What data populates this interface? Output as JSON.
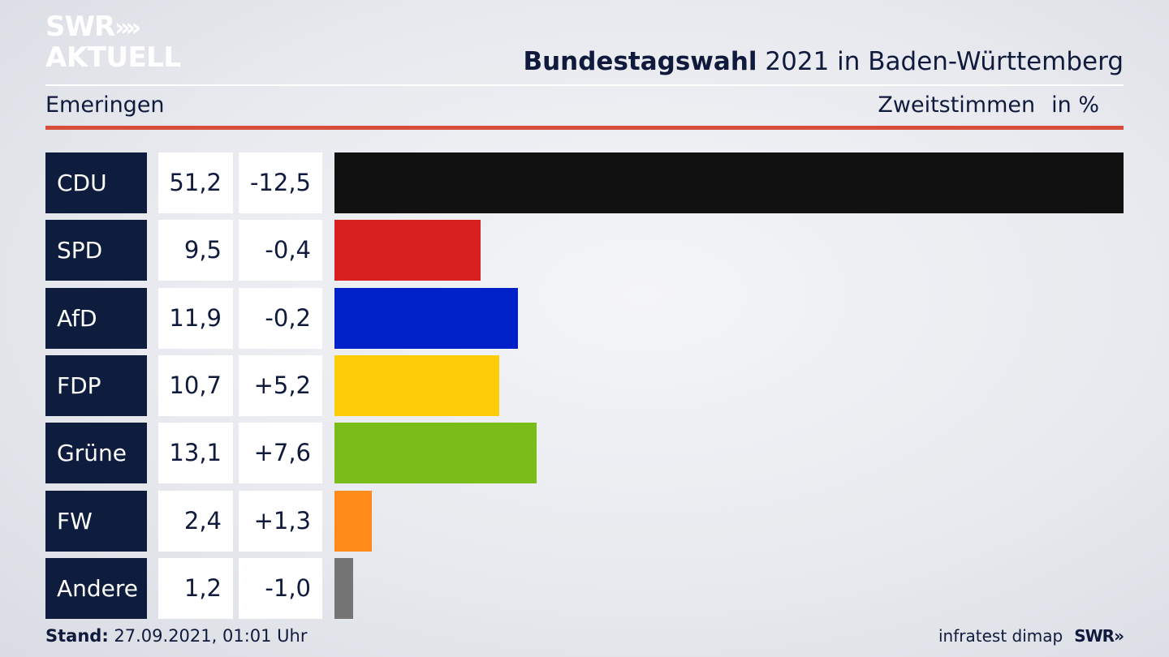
{
  "logo": {
    "line1": "SWR",
    "arrows": "»",
    "line2": "AKTUELL"
  },
  "header": {
    "title_bold": "Bundestagswahl",
    "title_rest": " 2021 in Baden-Württemberg",
    "location": "Emeringen",
    "vote_type": "Zweitstimmen",
    "unit": "in %"
  },
  "footer": {
    "stand_label": "Stand:",
    "stand_value": " 27.09.2021, 01:01 Uhr",
    "source": "infratest dimap",
    "brand": "SWR»"
  },
  "colors": {
    "CDU": "#111111",
    "SPD": "#d8201e",
    "AfD": "#0020c8",
    "FDP": "#ffcc08",
    "Grüne": "#7abd1a",
    "FW": "#ff8c1a",
    "Andere": "#747474"
  },
  "chart_data": {
    "type": "bar",
    "orientation": "horizontal",
    "categories": [
      "CDU",
      "SPD",
      "AfD",
      "FDP",
      "Grüne",
      "FW",
      "Andere"
    ],
    "values": [
      51.2,
      9.5,
      11.9,
      10.7,
      13.1,
      2.4,
      1.2
    ],
    "values_display": [
      "51,2",
      "9,5",
      "11,9",
      "10,7",
      "13,1",
      "2,4",
      "1,2"
    ],
    "change": [
      -12.5,
      -0.4,
      -0.2,
      5.2,
      7.6,
      1.3,
      -1.0
    ],
    "change_display": [
      "-12,5",
      "-0,4",
      "-0,2",
      "+5,2",
      "+7,6",
      "+1,3",
      "-1,0"
    ],
    "xlim": [
      0,
      51.2
    ],
    "grid": false,
    "legend": "none"
  }
}
